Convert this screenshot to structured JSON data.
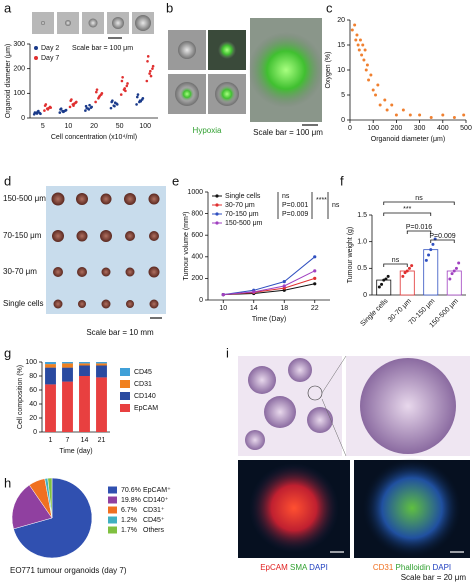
{
  "panel_labels": [
    "a",
    "b",
    "c",
    "d",
    "e",
    "f",
    "g",
    "h",
    "i"
  ],
  "images": {
    "b_caption": "Hypoxia",
    "b_scale": "Scale bar = 100 μm",
    "d_rows": [
      "150-500 μm",
      "70-150 μm",
      "30-70 μm",
      "Single cells"
    ],
    "d_scale": "Scale bar = 10 mm",
    "i_left": [
      "EpCAM",
      "SMA",
      "DAPI"
    ],
    "i_right": [
      "CD31",
      "Phalloidin",
      "DAPI"
    ],
    "i_scale": "Scale bar = 20 μm"
  },
  "chart_data": [
    {
      "type": "strip",
      "annotation": "Scale bar = 100 μm",
      "xlabel": "Cell concentration (x10⁴/ml)",
      "ylabel": "Organoid diameter (μm)",
      "categories": [
        "5",
        "10",
        "20",
        "50",
        "100"
      ],
      "ylim": [
        0,
        300
      ],
      "yticks": [
        0,
        100,
        200,
        300
      ],
      "series": [
        {
          "name": "Day 2",
          "color": "#1a3a8a",
          "values": [
            [
              15,
              18,
              20,
              22,
              25,
              17,
              21,
              28
            ],
            [
              22,
              28,
              30,
              35,
              25,
              32,
              38,
              27
            ],
            [
              30,
              38,
              42,
              48,
              35,
              45,
              40,
              52
            ],
            [
              40,
              50,
              58,
              65,
              48,
              55,
              70,
              62
            ],
            [
              55,
              65,
              75,
              85,
              70,
              80,
              95,
              68
            ]
          ]
        },
        {
          "name": "Day 7",
          "color": "#e03030",
          "values": [
            [
              30,
              38,
              45,
              50,
              35,
              42,
              55,
              40
            ],
            [
              45,
              55,
              62,
              70,
              50,
              65,
              75,
              58
            ],
            [
              65,
              80,
              95,
              105,
              85,
              100,
              115,
              90
            ],
            [
              95,
              115,
              130,
              150,
              120,
              140,
              165,
              110
            ],
            [
              150,
              180,
              200,
              230,
              190,
              210,
              250,
              170
            ]
          ]
        }
      ]
    },
    {
      "type": "scatter",
      "xlabel": "Organoid diameter (μm)",
      "ylabel": "Oxygen (%)",
      "color": "#f08030",
      "x": [
        10,
        20,
        25,
        30,
        35,
        40,
        45,
        50,
        55,
        60,
        65,
        70,
        75,
        80,
        90,
        100,
        110,
        120,
        130,
        150,
        160,
        180,
        200,
        230,
        260,
        300,
        350,
        400,
        450,
        490
      ],
      "y": [
        18,
        19,
        16,
        17,
        15,
        14,
        16,
        13,
        15,
        12,
        14,
        10,
        11,
        8,
        9,
        6,
        5,
        7,
        3,
        4,
        2,
        3,
        1,
        2,
        1,
        1,
        0.5,
        1,
        0.5,
        1
      ],
      "xlim": [
        0,
        500
      ],
      "xticks": [
        0,
        100,
        200,
        300,
        400,
        500
      ],
      "ylim": [
        0,
        20
      ],
      "yticks": [
        0,
        5,
        10,
        15,
        20
      ]
    },
    {
      "type": "line",
      "xlabel": "Time (Day)",
      "ylabel": "Tumour volume (mm³)",
      "x": [
        10,
        14,
        18,
        22
      ],
      "xlim": [
        8,
        24
      ],
      "xticks": [
        10,
        14,
        18,
        22
      ],
      "ylim": [
        0,
        1000
      ],
      "yticks": [
        0,
        200,
        400,
        600,
        800,
        1000
      ],
      "annotations": [
        "ns",
        "P=0.001",
        "P=0.009",
        "****",
        "ns"
      ],
      "series": [
        {
          "name": "Single cells",
          "color": "#111111",
          "values": [
            50,
            60,
            90,
            150
          ]
        },
        {
          "name": "30-70 μm",
          "color": "#e03030",
          "values": [
            50,
            70,
            110,
            200
          ]
        },
        {
          "name": "70-150 μm",
          "color": "#3050c0",
          "values": [
            50,
            90,
            170,
            400
          ]
        },
        {
          "name": "150-500 μm",
          "color": "#a040c0",
          "values": [
            50,
            75,
            130,
            270
          ]
        }
      ]
    },
    {
      "type": "bar",
      "ylabel": "Tumour weight (g)",
      "categories": [
        "Single cells",
        "30-70 μm",
        "70-150 μm",
        "150-500 μm"
      ],
      "values": [
        0.28,
        0.45,
        0.85,
        0.45
      ],
      "points": [
        [
          0.15,
          0.2,
          0.28,
          0.3,
          0.35
        ],
        [
          0.35,
          0.42,
          0.45,
          0.5,
          0.55
        ],
        [
          0.65,
          0.75,
          0.85,
          0.95,
          1.05
        ],
        [
          0.3,
          0.4,
          0.45,
          0.5,
          0.6
        ]
      ],
      "colors": [
        "#111111",
        "#e03030",
        "#3050c0",
        "#a040c0"
      ],
      "ylim": [
        0,
        1.5
      ],
      "yticks": [
        0,
        0.5,
        {
          "value": 1,
          "label": "1.0"
        },
        1.5
      ],
      "annotations": [
        "ns",
        "***",
        "P=0.016",
        "P=0.009",
        "ns"
      ]
    },
    {
      "type": "stacked-bar",
      "xlabel": "Time (day)",
      "ylabel": "Cell composition (%)",
      "categories": [
        "1",
        "7",
        "14",
        "21"
      ],
      "ylim": [
        0,
        100
      ],
      "yticks": [
        0,
        20,
        40,
        60,
        80,
        100
      ],
      "series": [
        {
          "name": "EpCAM",
          "color": "#e84040",
          "values": [
            68,
            72,
            80,
            78
          ]
        },
        {
          "name": "CD140",
          "color": "#2a4aa0",
          "values": [
            24,
            20,
            15,
            17
          ]
        },
        {
          "name": "CD31",
          "color": "#f08020",
          "values": [
            5,
            6,
            3,
            3
          ]
        },
        {
          "name": "CD45",
          "color": "#40a0d8",
          "values": [
            3,
            2,
            2,
            2
          ]
        }
      ]
    },
    {
      "type": "pie",
      "caption": "EO771 tumour organoids (day 7)",
      "categories": [
        "EpCAM⁺",
        "CD140⁺",
        "CD31⁺",
        "CD45⁺",
        "Others"
      ],
      "values": [
        70.6,
        19.8,
        6.7,
        1.2,
        1.7
      ],
      "value_labels": [
        "70.6%",
        "19.8%",
        "6.7%",
        "1.2%",
        "1.7%"
      ],
      "colors": [
        "#3050b0",
        "#9040a0",
        "#f07020",
        "#40b0c0",
        "#80c040"
      ]
    }
  ]
}
